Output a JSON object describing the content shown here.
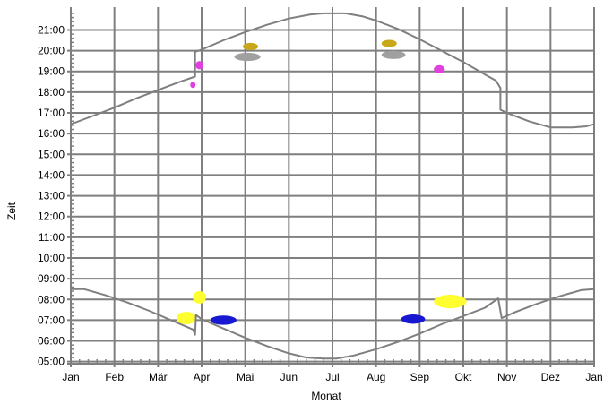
{
  "chart_data": {
    "type": "scatter",
    "title": "",
    "xlabel": "Monat",
    "ylabel": "Zeit",
    "x_ticks": [
      "Jan",
      "Feb",
      "Mär",
      "Apr",
      "Mai",
      "Jun",
      "Jul",
      "Aug",
      "Sep",
      "Okt",
      "Nov",
      "Dez",
      "Jan"
    ],
    "y_ticks": [
      "05:00",
      "06:00",
      "07:00",
      "08:00",
      "09:00",
      "10:00",
      "11:00",
      "12:00",
      "13:00",
      "14:00",
      "15:00",
      "16:00",
      "17:00",
      "18:00",
      "19:00",
      "20:00",
      "21:00"
    ],
    "xlim": [
      0,
      12
    ],
    "ylim": [
      4.9,
      22.1
    ],
    "grid": true,
    "line_color": "#7f7f7f",
    "sunset": [
      [
        0,
        16.45
      ],
      [
        0.5,
        16.85
      ],
      [
        1,
        17.25
      ],
      [
        1.5,
        17.7
      ],
      [
        2,
        18.1
      ],
      [
        2.5,
        18.5
      ],
      [
        2.85,
        18.75
      ],
      [
        2.85,
        19.95
      ],
      [
        3,
        20.05
      ],
      [
        3.5,
        20.5
      ],
      [
        4,
        20.9
      ],
      [
        4.5,
        21.25
      ],
      [
        5,
        21.55
      ],
      [
        5.5,
        21.75
      ],
      [
        5.8,
        21.8
      ],
      [
        6.3,
        21.8
      ],
      [
        6.7,
        21.65
      ],
      [
        7,
        21.45
      ],
      [
        7.5,
        21.05
      ],
      [
        8,
        20.55
      ],
      [
        8.5,
        20.0
      ],
      [
        9,
        19.45
      ],
      [
        9.5,
        18.85
      ],
      [
        9.75,
        18.55
      ],
      [
        9.85,
        18.2
      ],
      [
        9.85,
        17.15
      ],
      [
        10,
        17.0
      ],
      [
        10.5,
        16.6
      ],
      [
        11,
        16.3
      ],
      [
        11.5,
        16.3
      ],
      [
        11.8,
        16.35
      ],
      [
        12,
        16.45
      ]
    ],
    "sunrise": [
      [
        0,
        8.5
      ],
      [
        0.3,
        8.5
      ],
      [
        0.8,
        8.2
      ],
      [
        1.3,
        7.85
      ],
      [
        1.8,
        7.45
      ],
      [
        2.3,
        7.0
      ],
      [
        2.8,
        6.55
      ],
      [
        2.85,
        6.3
      ],
      [
        2.87,
        7.25
      ],
      [
        3,
        7.05
      ],
      [
        3.5,
        6.6
      ],
      [
        4,
        6.15
      ],
      [
        4.5,
        5.75
      ],
      [
        5,
        5.4
      ],
      [
        5.4,
        5.2
      ],
      [
        5.8,
        5.15
      ],
      [
        6.1,
        5.15
      ],
      [
        6.5,
        5.3
      ],
      [
        7,
        5.6
      ],
      [
        7.5,
        5.95
      ],
      [
        8,
        6.35
      ],
      [
        8.5,
        6.8
      ],
      [
        9,
        7.2
      ],
      [
        9.5,
        7.6
      ],
      [
        9.8,
        8.05
      ],
      [
        9.88,
        7.1
      ],
      [
        10.2,
        7.4
      ],
      [
        10.7,
        7.8
      ],
      [
        11.2,
        8.15
      ],
      [
        11.7,
        8.45
      ],
      [
        12,
        8.5
      ]
    ],
    "markers": [
      {
        "x": 2.8,
        "y": 18.35,
        "w": 0.1,
        "h": 0.3,
        "color": "#e040e0"
      },
      {
        "x": 2.95,
        "y": 19.3,
        "w": 0.18,
        "h": 0.4,
        "color": "#e040e0"
      },
      {
        "x": 4.12,
        "y": 20.2,
        "w": 0.35,
        "h": 0.35,
        "color": "#c8a818"
      },
      {
        "x": 4.05,
        "y": 19.7,
        "w": 0.6,
        "h": 0.4,
        "color": "#a0a0a0"
      },
      {
        "x": 7.3,
        "y": 20.35,
        "w": 0.35,
        "h": 0.35,
        "color": "#c8a818"
      },
      {
        "x": 7.4,
        "y": 19.8,
        "w": 0.55,
        "h": 0.4,
        "color": "#a0a0a0"
      },
      {
        "x": 8.45,
        "y": 19.1,
        "w": 0.25,
        "h": 0.4,
        "color": "#e040e0"
      },
      {
        "x": 2.65,
        "y": 7.1,
        "w": 0.45,
        "h": 0.6,
        "color": "#ffff30"
      },
      {
        "x": 2.95,
        "y": 8.1,
        "w": 0.3,
        "h": 0.6,
        "color": "#ffff30"
      },
      {
        "x": 3.5,
        "y": 7.0,
        "w": 0.6,
        "h": 0.45,
        "color": "#1818d0"
      },
      {
        "x": 7.85,
        "y": 7.05,
        "w": 0.55,
        "h": 0.45,
        "color": "#1818d0"
      },
      {
        "x": 8.7,
        "y": 7.9,
        "w": 0.75,
        "h": 0.65,
        "color": "#ffff30"
      }
    ]
  }
}
